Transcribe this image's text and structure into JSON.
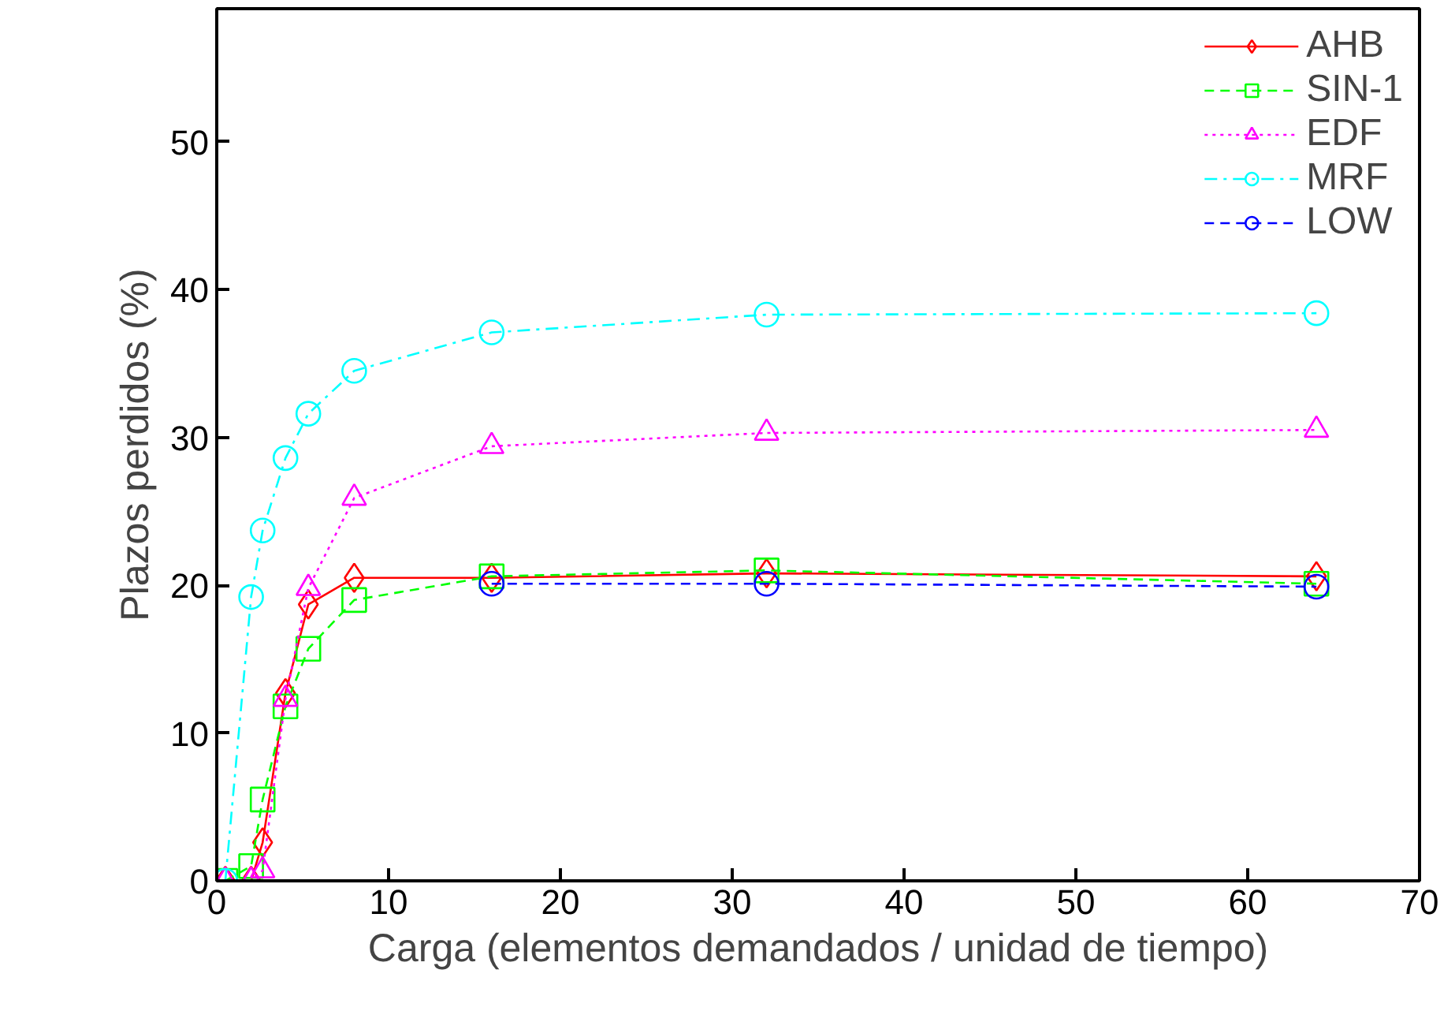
{
  "chart_data": {
    "type": "line",
    "xlabel": "Carga (elementos demandados / unidad de tiempo)",
    "ylabel": "Plazos perdidos (%)",
    "xlim": [
      0,
      70
    ],
    "xticks": [
      0,
      10,
      20,
      30,
      40,
      50,
      60,
      70
    ],
    "ylim": [
      0,
      59
    ],
    "yticks": [
      0,
      10,
      20,
      30,
      40,
      50
    ],
    "grid": false,
    "legend": "top right",
    "series": [
      {
        "name": "AHB",
        "color": "#ff0000",
        "marker": "diamond",
        "line_style": "solid",
        "x": [
          0.5,
          2,
          2.67,
          4,
          5.33,
          8,
          16,
          32,
          64
        ],
        "values": [
          0,
          0,
          2.6,
          12.7,
          18.7,
          20.5,
          20.5,
          20.8,
          20.6
        ]
      },
      {
        "name": "SIN-1",
        "color": "#00ff00",
        "marker": "square",
        "line_style": "dashed",
        "x": [
          0.5,
          2,
          2.67,
          4,
          5.33,
          8,
          16,
          32,
          64
        ],
        "values": [
          0,
          1.0,
          5.5,
          11.8,
          15.7,
          19.0,
          20.6,
          21.0,
          20.1
        ]
      },
      {
        "name": "EDF",
        "color": "#ff00ff",
        "marker": "triangle",
        "line_style": "dotted",
        "x": [
          0.5,
          2,
          2.67,
          4,
          5.33,
          8,
          16,
          32,
          64
        ],
        "values": [
          0,
          0,
          0.7,
          12.3,
          19.8,
          25.9,
          29.4,
          30.3,
          30.5
        ]
      },
      {
        "name": "MRF",
        "color": "#00ffff",
        "marker": "circle",
        "line_style": "dashdot",
        "x": [
          0.5,
          2,
          2.67,
          4,
          5.33,
          8,
          16,
          32,
          64
        ],
        "values": [
          0,
          19.2,
          23.7,
          28.6,
          31.6,
          34.5,
          37.1,
          38.3,
          38.4
        ]
      },
      {
        "name": "LOW",
        "color": "#0000ff",
        "marker": "circle",
        "line_style": "dashed",
        "x": [
          16,
          32,
          64
        ],
        "values": [
          20.1,
          20.1,
          19.9
        ]
      }
    ]
  }
}
